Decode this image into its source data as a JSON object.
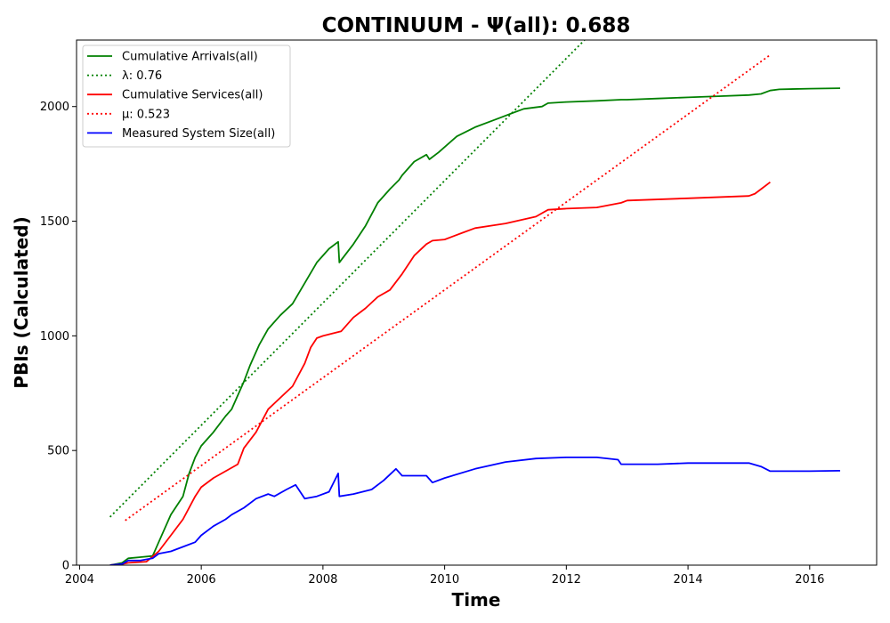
{
  "chart_data": {
    "type": "line",
    "title": "CONTINUUM -  Ψ(all): 0.688",
    "xlabel": "Time",
    "ylabel": "PBIs (Calculated)",
    "xlim": [
      2003.95,
      2017.1
    ],
    "ylim": [
      0,
      2290
    ],
    "x_ticks": [
      2004,
      2006,
      2008,
      2010,
      2012,
      2014,
      2016
    ],
    "y_ticks": [
      0,
      500,
      1000,
      1500,
      2000
    ],
    "grid": false,
    "legend_position": "top-left",
    "series": [
      {
        "name": "Cumulative Arrivals(all)",
        "style": "solid",
        "color": "#008000",
        "x": [
          2004.5,
          2004.7,
          2004.8,
          2005.0,
          2005.2,
          2005.3,
          2005.5,
          2005.7,
          2005.8,
          2005.9,
          2006.0,
          2006.2,
          2006.4,
          2006.5,
          2006.7,
          2006.8,
          2006.95,
          2007.1,
          2007.3,
          2007.5,
          2007.7,
          2007.9,
          2008.1,
          2008.25,
          2008.27,
          2008.5,
          2008.7,
          2008.9,
          2009.1,
          2009.25,
          2009.3,
          2009.5,
          2009.7,
          2009.75,
          2009.9,
          2010.2,
          2010.5,
          2010.8,
          2011.1,
          2011.3,
          2011.6,
          2011.7,
          2012.0,
          2012.5,
          2012.9,
          2013.0,
          2013.5,
          2014.0,
          2014.5,
          2015.0,
          2015.2,
          2015.35,
          2015.5,
          2016.0,
          2016.5
        ],
        "y": [
          0,
          10,
          30,
          35,
          40,
          100,
          220,
          300,
          400,
          470,
          520,
          580,
          650,
          680,
          800,
          870,
          960,
          1030,
          1090,
          1140,
          1230,
          1320,
          1380,
          1410,
          1320,
          1400,
          1480,
          1580,
          1640,
          1680,
          1700,
          1760,
          1790,
          1770,
          1800,
          1870,
          1910,
          1940,
          1970,
          1990,
          2000,
          2015,
          2020,
          2025,
          2030,
          2030,
          2035,
          2040,
          2045,
          2050,
          2055,
          2070,
          2075,
          2078,
          2080
        ]
      },
      {
        "name": "λ: 0.76",
        "style": "dotted",
        "color": "#008000",
        "x": [
          2004.5,
          2012.3
        ],
        "y": [
          210,
          2290
        ]
      },
      {
        "name": "Cumulative Services(all)",
        "style": "solid",
        "color": "#ff0000",
        "x": [
          2004.5,
          2004.7,
          2004.8,
          2005.1,
          2005.3,
          2005.5,
          2005.7,
          2005.9,
          2006.0,
          2006.2,
          2006.4,
          2006.6,
          2006.7,
          2006.9,
          2007.1,
          2007.3,
          2007.5,
          2007.7,
          2007.8,
          2007.9,
          2008.0,
          2008.3,
          2008.5,
          2008.7,
          2008.9,
          2009.1,
          2009.3,
          2009.5,
          2009.7,
          2009.8,
          2010.0,
          2010.3,
          2010.5,
          2011.0,
          2011.5,
          2011.7,
          2012.0,
          2012.5,
          2012.9,
          2013.0,
          2014.0,
          2015.0,
          2015.1,
          2015.2,
          2015.35
        ],
        "y": [
          0,
          5,
          10,
          15,
          60,
          130,
          200,
          300,
          340,
          380,
          410,
          440,
          510,
          580,
          680,
          730,
          780,
          880,
          950,
          990,
          1000,
          1020,
          1080,
          1120,
          1170,
          1200,
          1270,
          1350,
          1400,
          1415,
          1420,
          1450,
          1470,
          1490,
          1520,
          1550,
          1555,
          1560,
          1580,
          1590,
          1600,
          1610,
          1620,
          1640,
          1670
        ]
      },
      {
        "name": "μ: 0.523",
        "style": "dotted",
        "color": "#ff0000",
        "x": [
          2004.75,
          2015.35
        ],
        "y": [
          195,
          2225
        ]
      },
      {
        "name": "Measured System Size(all)",
        "style": "solid",
        "color": "#0000ff",
        "x": [
          2004.5,
          2004.7,
          2004.8,
          2005.0,
          2005.2,
          2005.3,
          2005.5,
          2005.7,
          2005.9,
          2006.0,
          2006.2,
          2006.4,
          2006.5,
          2006.7,
          2006.9,
          2007.1,
          2007.2,
          2007.4,
          2007.55,
          2007.7,
          2007.9,
          2008.1,
          2008.25,
          2008.27,
          2008.5,
          2008.8,
          2009.0,
          2009.2,
          2009.3,
          2009.5,
          2009.7,
          2009.8,
          2010.0,
          2010.5,
          2011.0,
          2011.5,
          2012.0,
          2012.5,
          2012.85,
          2012.9,
          2013.5,
          2014.0,
          2014.5,
          2015.0,
          2015.2,
          2015.35,
          2016.0,
          2016.5
        ],
        "y": [
          0,
          5,
          20,
          20,
          30,
          50,
          60,
          80,
          100,
          130,
          170,
          200,
          220,
          250,
          290,
          310,
          300,
          330,
          350,
          290,
          300,
          320,
          400,
          300,
          310,
          330,
          370,
          420,
          390,
          390,
          390,
          360,
          380,
          420,
          450,
          465,
          470,
          470,
          460,
          440,
          440,
          445,
          445,
          445,
          430,
          410,
          410,
          412
        ]
      }
    ]
  }
}
